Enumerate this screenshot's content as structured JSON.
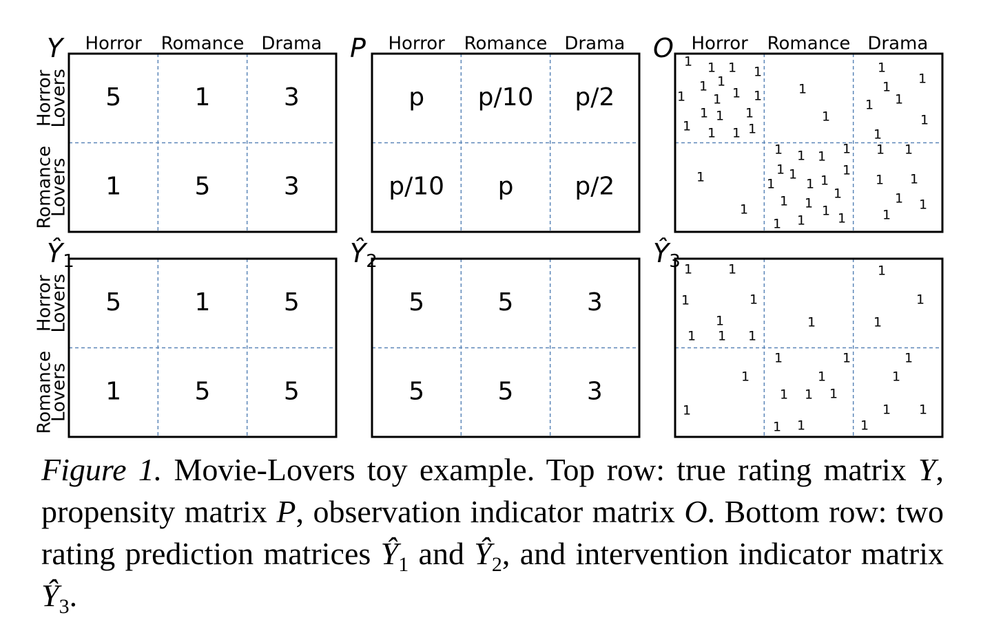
{
  "figure": {
    "column_headers": [
      "Horror",
      "Romance",
      "Drama"
    ],
    "row_labels": [
      [
        "Horror",
        "Lovers"
      ],
      [
        "Romance",
        "Lovers"
      ]
    ],
    "matrices": [
      {
        "symbol": "Y",
        "cells": [
          [
            5,
            1,
            3
          ],
          [
            1,
            5,
            3
          ]
        ]
      },
      {
        "symbol": "P",
        "cells": [
          [
            "p",
            "p/10",
            "p/2"
          ],
          [
            "p/10",
            "p",
            "p/2"
          ]
        ]
      },
      {
        "symbol": "O",
        "cells": [
          [
            [
              "1",
              "1",
              "1",
              "1",
              "1",
              "1",
              "1",
              "1",
              "1",
              "1",
              "1",
              "1",
              "1",
              "1",
              "1",
              "1",
              "1"
            ],
            [
              "1",
              "1"
            ],
            [
              "1",
              "1",
              "1",
              "1",
              "1",
              "1",
              "1"
            ]
          ],
          [
            [
              "1",
              "1"
            ],
            [
              "1",
              "1",
              "1",
              "1",
              "1",
              "1",
              "1",
              "1",
              "1",
              "1",
              "1",
              "1",
              "1",
              "1",
              "1",
              "1",
              "1"
            ],
            [
              "1",
              "1",
              "1",
              "1",
              "1",
              "1",
              "1"
            ]
          ]
        ]
      },
      {
        "symbol": "Ŷ",
        "subscript": "1",
        "cells": [
          [
            5,
            1,
            5
          ],
          [
            1,
            5,
            5
          ]
        ]
      },
      {
        "symbol": "Ŷ",
        "subscript": "2",
        "cells": [
          [
            5,
            5,
            3
          ],
          [
            5,
            5,
            3
          ]
        ]
      },
      {
        "symbol": "Ŷ",
        "subscript": "3",
        "cells": [
          [
            [
              "1",
              "1",
              "1",
              "1",
              "1",
              "1",
              "1",
              "1"
            ],
            [
              "1"
            ],
            [
              "1",
              "1",
              "1"
            ]
          ],
          [
            [
              "1",
              "1"
            ],
            [
              "1",
              "1",
              "1",
              "1",
              "1",
              "1",
              "1",
              "1"
            ],
            [
              "1",
              "1",
              "1",
              "1",
              "1"
            ]
          ]
        ]
      }
    ]
  },
  "caption": {
    "label": "Figure 1.",
    "segments": [
      {
        "text": " Movie-Lovers toy example. Top row: true rating matrix "
      },
      {
        "text": "Y",
        "style": "math"
      },
      {
        "text": ", propensity matrix "
      },
      {
        "text": "P",
        "style": "math"
      },
      {
        "text": ", observation indicator matrix "
      },
      {
        "text": "O",
        "style": "math"
      },
      {
        "text": ". Bottom row: two rating prediction matrices "
      },
      {
        "text": "Ŷ",
        "style": "math",
        "sub": "1"
      },
      {
        "text": " and "
      },
      {
        "text": "Ŷ",
        "style": "math",
        "sub": "2"
      },
      {
        "text": ", and intervention indicator matrix "
      },
      {
        "text": "Ŷ",
        "style": "math",
        "sub": "3"
      },
      {
        "text": "."
      }
    ]
  }
}
